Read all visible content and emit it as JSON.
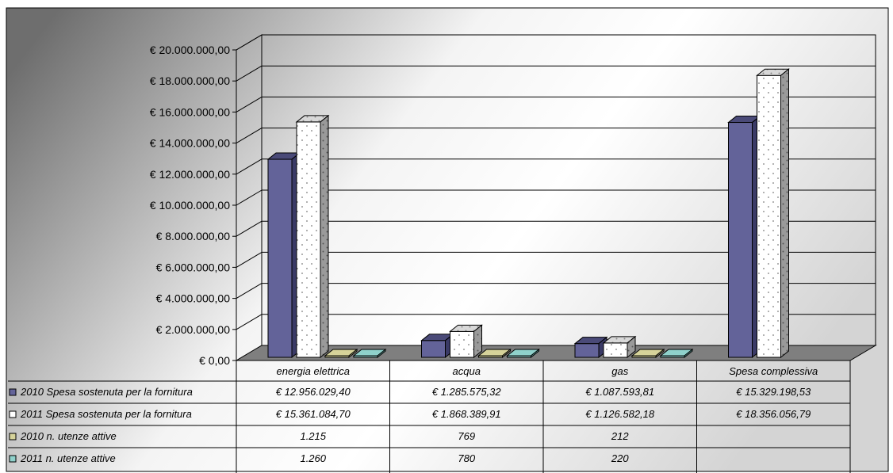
{
  "colors": {
    "series_2010_spesa": "#636399",
    "series_2011_spesa": "#ffffff",
    "series_2010_utenze": "#d6d39a",
    "series_2011_utenze": "#8fd1cb",
    "floor": "#7f7f7f"
  },
  "chart_data": {
    "type": "bar",
    "categories": [
      "energia elettrica",
      "acqua",
      "gas",
      "Spesa complessiva"
    ],
    "ylim": [
      0,
      20000000
    ],
    "yticks": [
      "€ 0,00",
      "€ 2.000.000,00",
      "€ 4.000.000,00",
      "€ 6.000.000,00",
      "€ 8.000.000,00",
      "€ 10.000.000,00",
      "€ 12.000.000,00",
      "€ 14.000.000,00",
      "€ 16.000.000,00",
      "€ 18.000.000,00",
      "€ 20.000.000,00"
    ],
    "series": [
      {
        "name": "2010 Spesa sostenuta per la fornitura",
        "values": [
          12956029.4,
          1285575.32,
          1087593.81,
          15329198.53
        ],
        "labels": [
          "€ 12.956.029,40",
          "€ 1.285.575,32",
          "€ 1.087.593,81",
          "€ 15.329.198,53"
        ]
      },
      {
        "name": "2011 Spesa sostenuta per la fornitura",
        "values": [
          15361084.7,
          1868389.91,
          1126582.18,
          18356056.79
        ],
        "labels": [
          "€ 15.361.084,70",
          "€ 1.868.389,91",
          "€ 1.126.582,18",
          "€ 18.356.056,79"
        ]
      },
      {
        "name": "2010 n. utenze attive",
        "values": [
          1215,
          769,
          212,
          null
        ],
        "labels": [
          "1.215",
          "769",
          "212",
          ""
        ]
      },
      {
        "name": "2011 n. utenze attive",
        "values": [
          1260,
          780,
          220,
          null
        ],
        "labels": [
          "1.260",
          "780",
          "220",
          ""
        ]
      }
    ]
  }
}
